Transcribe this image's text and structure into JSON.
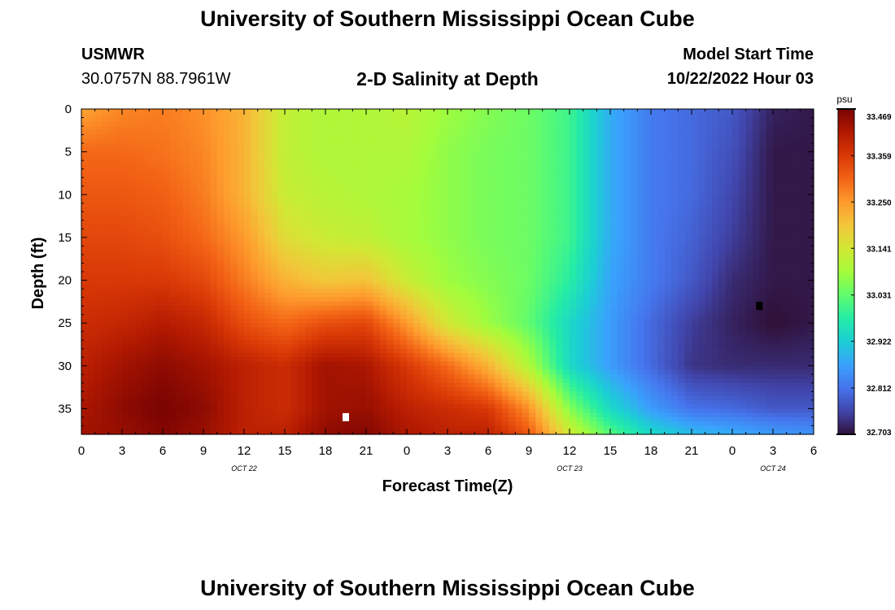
{
  "header": {
    "title": "University of Southern Mississippi Ocean Cube",
    "station": "USMWR",
    "coords": "30.0757N  88.7961W",
    "subtitle": "2-D Salinity at Depth",
    "start_label": "Model Start Time",
    "start_value": "10/22/2022 Hour 03"
  },
  "footer": {
    "title": "University of Southern Mississippi Ocean Cube"
  },
  "colors": {
    "colormap": [
      "#30123b",
      "#4145ab",
      "#4675ed",
      "#39a2fc",
      "#1bcfd4",
      "#24eca6",
      "#61fc6c",
      "#a4fc3b",
      "#d1e834",
      "#f3c63a",
      "#fe9b2d",
      "#f36315",
      "#d93806",
      "#b11901",
      "#7a0402"
    ],
    "max_marker": "#ffffff",
    "min_marker": "#000000"
  },
  "chart_data": {
    "type": "heatmap",
    "title": "2-D Salinity at Depth",
    "xlabel": "Forecast Time(Z)",
    "ylabel": "Depth (ft)",
    "xlim": [
      0,
      54
    ],
    "ylim": [
      38,
      0
    ],
    "x_ticks": [
      0,
      3,
      6,
      9,
      12,
      15,
      18,
      21,
      24,
      27,
      30,
      33,
      36,
      39,
      42,
      45,
      48,
      51,
      54
    ],
    "x_tick_labels": [
      "0",
      "3",
      "6",
      "9",
      "12",
      "15",
      "18",
      "21",
      "0",
      "3",
      "6",
      "9",
      "12",
      "15",
      "18",
      "21",
      "0",
      "3",
      "6"
    ],
    "date_labels": [
      {
        "x": 12,
        "text": "OCT 22"
      },
      {
        "x": 36,
        "text": "OCT 23"
      },
      {
        "x": 51,
        "text": "OCT 24"
      }
    ],
    "y_ticks": [
      0,
      5,
      10,
      15,
      20,
      25,
      30,
      35
    ],
    "y_tick_labels": [
      "0",
      "5",
      "10",
      "15",
      "20",
      "25",
      "30",
      "35"
    ],
    "colorbar": {
      "unit": "psu",
      "min": 32.703,
      "max": 33.469,
      "tick_values": [
        33.469,
        33.359,
        33.25,
        33.141,
        33.031,
        32.922,
        32.812,
        32.703
      ],
      "tick_labels": [
        "33.469",
        "33.359",
        "33.250",
        "33.141",
        "33.031",
        "32.922",
        "32.812",
        "32.703"
      ]
    },
    "max_marker": {
      "x": 19.5,
      "y": 36
    },
    "min_marker": {
      "x": 50,
      "y": 23
    },
    "grid": false,
    "legend": "colorbar-right",
    "grid_x": [
      0,
      3,
      6,
      9,
      12,
      15,
      18,
      21,
      24,
      27,
      30,
      33,
      36,
      39,
      42,
      45,
      48,
      51,
      54
    ],
    "grid_y": [
      0,
      5,
      10,
      15,
      20,
      25,
      30,
      35,
      38
    ],
    "values": [
      [
        33.24,
        33.27,
        33.28,
        33.26,
        33.22,
        33.12,
        33.1,
        33.1,
        33.11,
        33.08,
        33.06,
        33.04,
        33.0,
        32.88,
        32.82,
        32.8,
        32.78,
        32.72,
        32.71
      ],
      [
        33.3,
        33.3,
        33.29,
        33.27,
        33.22,
        33.12,
        33.1,
        33.1,
        33.1,
        33.07,
        33.05,
        33.04,
        33.0,
        32.88,
        32.82,
        32.8,
        32.77,
        32.71,
        32.71
      ],
      [
        33.32,
        33.32,
        33.31,
        33.28,
        33.22,
        33.13,
        33.11,
        33.1,
        33.09,
        33.07,
        33.05,
        33.04,
        33.0,
        32.88,
        32.82,
        32.8,
        32.76,
        32.71,
        32.71
      ],
      [
        33.34,
        33.34,
        33.33,
        33.3,
        33.25,
        33.16,
        33.13,
        33.12,
        33.09,
        33.07,
        33.05,
        33.04,
        33.0,
        32.88,
        32.82,
        32.79,
        32.75,
        32.71,
        32.71
      ],
      [
        33.36,
        33.36,
        33.36,
        33.34,
        33.28,
        33.22,
        33.19,
        33.2,
        33.13,
        33.08,
        33.06,
        33.04,
        32.98,
        32.87,
        32.82,
        32.78,
        32.73,
        32.71,
        32.71
      ],
      [
        33.38,
        33.39,
        33.41,
        33.39,
        33.33,
        33.3,
        33.33,
        33.34,
        33.25,
        33.14,
        33.08,
        33.03,
        32.94,
        32.86,
        32.8,
        32.75,
        32.72,
        32.7,
        32.71
      ],
      [
        33.4,
        33.43,
        33.45,
        33.43,
        33.4,
        33.38,
        33.43,
        33.42,
        33.36,
        33.3,
        33.22,
        33.1,
        32.94,
        32.86,
        32.8,
        32.74,
        32.73,
        32.73,
        32.73
      ],
      [
        33.42,
        33.45,
        33.47,
        33.45,
        33.4,
        33.38,
        33.43,
        33.44,
        33.4,
        33.38,
        33.36,
        33.26,
        33.06,
        32.94,
        32.86,
        32.81,
        32.8,
        32.78,
        32.78
      ],
      [
        33.43,
        33.44,
        33.46,
        33.44,
        33.4,
        33.4,
        33.45,
        33.46,
        33.42,
        33.4,
        33.4,
        33.32,
        33.14,
        33.02,
        32.94,
        32.9,
        32.88,
        32.86,
        32.85
      ]
    ]
  }
}
